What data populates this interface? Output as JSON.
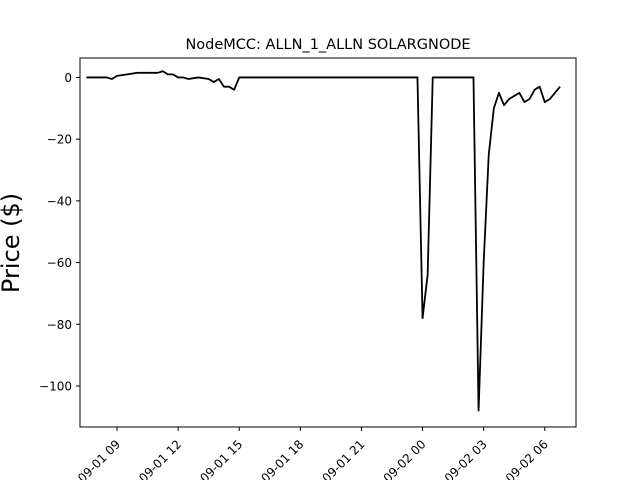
{
  "chart_data": {
    "type": "line",
    "title": "NodeMCC: ALLN_1_ALLN SOLARGNODE",
    "xlabel": "",
    "ylabel": "Price ($)",
    "ylim": [
      -113.3,
      6.3
    ],
    "xlim": [
      "2022-09-01 07:11",
      "2022-09-02 07:32"
    ],
    "grid": false,
    "x_ticks": [
      {
        "value": "2022-09-01 09:00",
        "label": "09-01 09"
      },
      {
        "value": "2022-09-01 12:00",
        "label": "09-01 12"
      },
      {
        "value": "2022-09-01 15:00",
        "label": "09-01 15"
      },
      {
        "value": "2022-09-01 18:00",
        "label": "09-01 18"
      },
      {
        "value": "2022-09-01 21:00",
        "label": "09-01 21"
      },
      {
        "value": "2022-09-02 00:00",
        "label": "09-02 00"
      },
      {
        "value": "2022-09-02 03:00",
        "label": "09-02 03"
      },
      {
        "value": "2022-09-02 06:00",
        "label": "09-02 06"
      }
    ],
    "y_ticks": [
      0,
      -20,
      -40,
      -60,
      -80,
      -100
    ],
    "y_tick_labels": [
      "0",
      "−20",
      "−40",
      "−60",
      "−80",
      "−100"
    ],
    "series": [
      {
        "color": "#000000",
        "x": [
          "2022-09-01 07:30",
          "2022-09-01 08:00",
          "2022-09-01 08:30",
          "2022-09-01 08:45",
          "2022-09-01 09:00",
          "2022-09-01 09:30",
          "2022-09-01 10:00",
          "2022-09-01 10:30",
          "2022-09-01 11:00",
          "2022-09-01 11:15",
          "2022-09-01 11:30",
          "2022-09-01 11:45",
          "2022-09-01 12:00",
          "2022-09-01 12:15",
          "2022-09-01 12:30",
          "2022-09-01 13:00",
          "2022-09-01 13:30",
          "2022-09-01 13:45",
          "2022-09-01 14:00",
          "2022-09-01 14:15",
          "2022-09-01 14:30",
          "2022-09-01 14:45",
          "2022-09-01 15:00",
          "2022-09-01 18:00",
          "2022-09-01 21:00",
          "2022-09-01 23:45",
          "2022-09-02 00:00",
          "2022-09-02 00:15",
          "2022-09-02 00:30",
          "2022-09-02 02:30",
          "2022-09-02 02:45",
          "2022-09-02 03:00",
          "2022-09-02 03:15",
          "2022-09-02 03:30",
          "2022-09-02 03:45",
          "2022-09-02 04:00",
          "2022-09-02 04:15",
          "2022-09-02 04:30",
          "2022-09-02 04:45",
          "2022-09-02 05:00",
          "2022-09-02 05:15",
          "2022-09-02 05:30",
          "2022-09-02 05:45",
          "2022-09-02 06:00",
          "2022-09-02 06:15",
          "2022-09-02 06:30",
          "2022-09-02 06:45"
        ],
        "y": [
          0,
          0,
          0,
          -0.5,
          0.5,
          1,
          1.5,
          1.5,
          1.5,
          2,
          1,
          1,
          0,
          0,
          -0.5,
          0,
          -0.5,
          -1.5,
          -0.5,
          -3,
          -3,
          -4,
          0,
          0,
          0,
          0,
          -78,
          -64,
          0,
          0,
          -108,
          -60,
          -25,
          -10,
          -5,
          -9,
          -7,
          -6,
          -5,
          -8,
          -7,
          -4,
          -3,
          -8,
          -7,
          -5,
          -3
        ]
      }
    ]
  }
}
